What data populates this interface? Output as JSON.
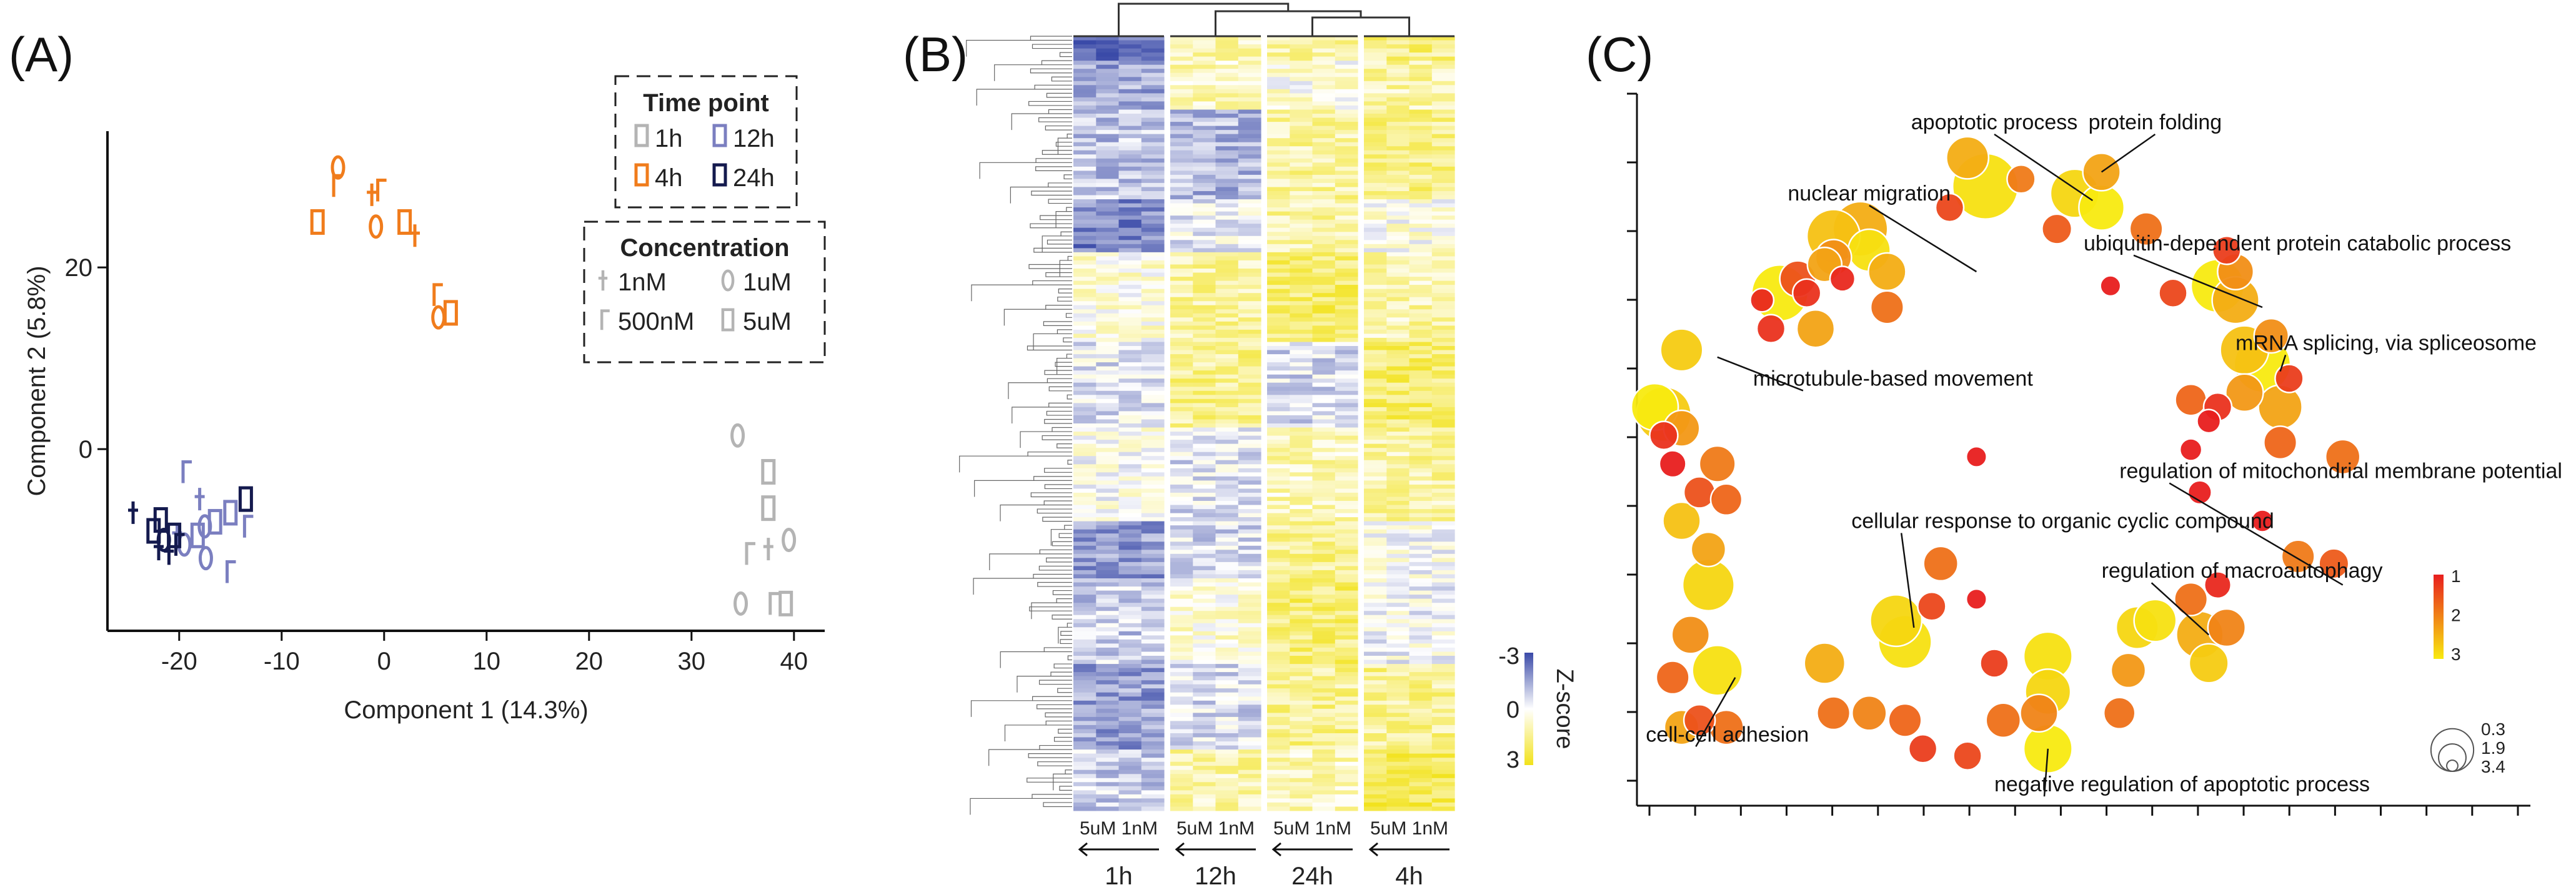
{
  "panels": {
    "a": "(A)",
    "b": "(B)",
    "c": "(C)"
  },
  "colors": {
    "t1h": "#b4b4b4",
    "t4h": "#f07c1c",
    "t12h": "#7b7fc0",
    "t24h": "#141a4e",
    "z_neg": "#3a4aa8",
    "z_mid": "#ffffff",
    "z_pos": "#f2e21a",
    "sig_low": "#e81e1e",
    "sig_high": "#f8ea10",
    "dendro": "#333333"
  },
  "chart_data": [
    {
      "type": "scatter",
      "title": "",
      "xlabel": "Component 1 (14.3%)",
      "ylabel": "Component 2 (5.8%)",
      "xlim": [
        -27,
        43
      ],
      "ylim": [
        -20,
        35
      ],
      "xticks": [
        -20,
        -10,
        0,
        10,
        20,
        30,
        40
      ],
      "xtick_labels": [
        "-20",
        "-10",
        "0",
        "10",
        "20",
        "30",
        "40"
      ],
      "yticks": [
        0,
        20
      ],
      "ytick_labels": [
        "0",
        "20"
      ],
      "legend": {
        "position": "top-right",
        "time_title": "Time point",
        "time_entries": [
          {
            "label": "1h",
            "key": "t1h"
          },
          {
            "label": "12h",
            "key": "t12h"
          },
          {
            "label": "4h",
            "key": "t4h"
          },
          {
            "label": "24h",
            "key": "t24h"
          }
        ],
        "conc_title": "Concentration",
        "conc_entries": [
          {
            "label": "1nM",
            "marker": "cross"
          },
          {
            "label": "1uM",
            "marker": "oval"
          },
          {
            "label": "500nM",
            "marker": "hook"
          },
          {
            "label": "5uM",
            "marker": "rect"
          }
        ]
      },
      "series": [
        {
          "name": "4h",
          "color_key": "t4h",
          "points": [
            {
              "x": -4.5,
              "y": 31,
              "m": "oval"
            },
            {
              "x": -4.8,
              "y": 29,
              "m": "hook"
            },
            {
              "x": -1.2,
              "y": 28,
              "m": "cross"
            },
            {
              "x": -0.5,
              "y": 28.5,
              "m": "hook"
            },
            {
              "x": -6.5,
              "y": 25,
              "m": "rect"
            },
            {
              "x": -0.8,
              "y": 24.5,
              "m": "oval"
            },
            {
              "x": 2,
              "y": 25,
              "m": "rect"
            },
            {
              "x": 3,
              "y": 23.5,
              "m": "cross"
            },
            {
              "x": 5,
              "y": 17,
              "m": "hook"
            },
            {
              "x": 6.5,
              "y": 15,
              "m": "rect"
            },
            {
              "x": 5.3,
              "y": 14.5,
              "m": "oval"
            }
          ]
        },
        {
          "name": "1h",
          "color_key": "t1h",
          "points": [
            {
              "x": 34.5,
              "y": 1.5,
              "m": "oval"
            },
            {
              "x": 37.5,
              "y": -2.5,
              "m": "rect"
            },
            {
              "x": 37.5,
              "y": -6.5,
              "m": "rect"
            },
            {
              "x": 39.5,
              "y": -10,
              "m": "oval"
            },
            {
              "x": 37.5,
              "y": -11,
              "m": "cross"
            },
            {
              "x": 35.5,
              "y": -11.5,
              "m": "hook"
            },
            {
              "x": 34.8,
              "y": -17,
              "m": "oval"
            },
            {
              "x": 37.8,
              "y": -17,
              "m": "hook"
            },
            {
              "x": 39.2,
              "y": -17,
              "m": "rect"
            }
          ]
        },
        {
          "name": "12h",
          "color_key": "t12h",
          "points": [
            {
              "x": -19.5,
              "y": -2.5,
              "m": "hook"
            },
            {
              "x": -18,
              "y": -5.5,
              "m": "cross"
            },
            {
              "x": -16.5,
              "y": -8,
              "m": "rect"
            },
            {
              "x": -17.5,
              "y": -8.5,
              "m": "oval"
            },
            {
              "x": -15,
              "y": -7,
              "m": "rect"
            },
            {
              "x": -13.5,
              "y": -8.5,
              "m": "hook"
            },
            {
              "x": -18.2,
              "y": -9.5,
              "m": "rect"
            },
            {
              "x": -17.4,
              "y": -12,
              "m": "oval"
            },
            {
              "x": -15.2,
              "y": -13.5,
              "m": "hook"
            },
            {
              "x": -19.5,
              "y": -10.5,
              "m": "oval"
            },
            {
              "x": -20.2,
              "y": -9.5,
              "m": "cross"
            }
          ]
        },
        {
          "name": "24h",
          "color_key": "t24h",
          "points": [
            {
              "x": -24.5,
              "y": -7,
              "m": "cross"
            },
            {
              "x": -22.5,
              "y": -9,
              "m": "rect"
            },
            {
              "x": -21.5,
              "y": -10,
              "m": "oval"
            },
            {
              "x": -20.5,
              "y": -9.5,
              "m": "rect"
            },
            {
              "x": -22,
              "y": -11,
              "m": "cross"
            },
            {
              "x": -21,
              "y": -11.5,
              "m": "cross"
            },
            {
              "x": -20.2,
              "y": -10.5,
              "m": "hook"
            },
            {
              "x": -13.5,
              "y": -5.5,
              "m": "rect"
            },
            {
              "x": -21.8,
              "y": -7.8,
              "m": "rect"
            }
          ]
        }
      ]
    },
    {
      "type": "heatmap",
      "title": "",
      "groups": [
        "1h",
        "12h",
        "24h",
        "4h"
      ],
      "group_col_labels": [
        [
          "5uM",
          "1nM"
        ],
        [
          "5uM",
          "1nM"
        ],
        [
          "5uM",
          "1nM"
        ],
        [
          "5uM",
          "1nM"
        ]
      ],
      "cols_per_group": 4,
      "n_rows": 190,
      "group_bias": [
        -0.3,
        0.1,
        0.35,
        0.15
      ],
      "colorbar": {
        "title": "Z-score",
        "ticks": [
          "-3",
          "0",
          "3"
        ]
      }
    },
    {
      "type": "scatter",
      "subtype": "bubble",
      "title": "",
      "xlim": [
        0,
        100
      ],
      "ylim": [
        0,
        100
      ],
      "n_xticks": 20,
      "n_yticks": 11,
      "bubbles": [
        {
          "x": 37,
          "y": 91,
          "s": 1.9,
          "v": 2.4
        },
        {
          "x": 39,
          "y": 87,
          "s": 3.4,
          "v": 2.9
        },
        {
          "x": 43,
          "y": 88,
          "s": 1.0,
          "v": 1.9
        },
        {
          "x": 35,
          "y": 84,
          "s": 1.0,
          "v": 1.4
        },
        {
          "x": 22,
          "y": 80,
          "s": 2.6,
          "v": 2.6
        },
        {
          "x": 25,
          "y": 81,
          "s": 2.7,
          "v": 2.4
        },
        {
          "x": 26,
          "y": 78,
          "s": 1.9,
          "v": 2.9
        },
        {
          "x": 21,
          "y": 76,
          "s": 1.4,
          "v": 2.3
        },
        {
          "x": 18,
          "y": 74,
          "s": 1.5,
          "v": 1.5
        },
        {
          "x": 16,
          "y": 72,
          "s": 2.8,
          "v": 3.0
        },
        {
          "x": 19,
          "y": 72,
          "s": 1.0,
          "v": 1.2
        },
        {
          "x": 23,
          "y": 74,
          "s": 0.8,
          "v": 1.1
        },
        {
          "x": 22,
          "y": 77,
          "s": 1.5,
          "v": 2.1
        },
        {
          "x": 14,
          "y": 71,
          "s": 0.7,
          "v": 1.1
        },
        {
          "x": 15,
          "y": 67,
          "s": 1.0,
          "v": 1.2
        },
        {
          "x": 28,
          "y": 75,
          "s": 1.6,
          "v": 2.4
        },
        {
          "x": 20,
          "y": 67,
          "s": 1.6,
          "v": 2.3
        },
        {
          "x": 28,
          "y": 70,
          "s": 1.3,
          "v": 1.8
        },
        {
          "x": 5,
          "y": 64,
          "s": 1.9,
          "v": 2.7
        },
        {
          "x": 2,
          "y": 56,
          "s": 2.2,
          "v": 3.0
        },
        {
          "x": 3,
          "y": 55,
          "s": 2.7,
          "v": 2.7
        },
        {
          "x": 5,
          "y": 53,
          "s": 1.5,
          "v": 2.2
        },
        {
          "x": 3,
          "y": 52,
          "s": 1.0,
          "v": 1.2
        },
        {
          "x": 4,
          "y": 48,
          "s": 0.9,
          "v": 1.0
        },
        {
          "x": 7,
          "y": 44,
          "s": 1.2,
          "v": 1.5
        },
        {
          "x": 9,
          "y": 48,
          "s": 1.5,
          "v": 1.9
        },
        {
          "x": 10,
          "y": 43,
          "s": 1.2,
          "v": 1.7
        },
        {
          "x": 5,
          "y": 40,
          "s": 1.6,
          "v": 2.6
        },
        {
          "x": 8,
          "y": 36,
          "s": 1.4,
          "v": 2.3
        },
        {
          "x": 8,
          "y": 31,
          "s": 2.5,
          "v": 2.8
        },
        {
          "x": 6,
          "y": 24,
          "s": 1.6,
          "v": 2.1
        },
        {
          "x": 4,
          "y": 18,
          "s": 1.3,
          "v": 1.7
        },
        {
          "x": 9,
          "y": 19,
          "s": 2.4,
          "v": 2.9
        },
        {
          "x": 5,
          "y": 11,
          "s": 1.4,
          "v": 2.3
        },
        {
          "x": 7,
          "y": 12,
          "s": 1.2,
          "v": 1.5
        },
        {
          "x": 10,
          "y": 11,
          "s": 1.4,
          "v": 1.8
        },
        {
          "x": 21,
          "y": 20,
          "s": 1.8,
          "v": 2.4
        },
        {
          "x": 22,
          "y": 13,
          "s": 1.3,
          "v": 1.8
        },
        {
          "x": 26,
          "y": 13,
          "s": 1.4,
          "v": 2.0
        },
        {
          "x": 30,
          "y": 12,
          "s": 1.3,
          "v": 1.7
        },
        {
          "x": 29,
          "y": 26,
          "s": 2.5,
          "v": 2.8
        },
        {
          "x": 30,
          "y": 23,
          "s": 2.6,
          "v": 2.9
        },
        {
          "x": 34,
          "y": 34,
          "s": 1.4,
          "v": 1.8
        },
        {
          "x": 33,
          "y": 28,
          "s": 1.0,
          "v": 1.4
        },
        {
          "x": 32,
          "y": 8,
          "s": 1.0,
          "v": 1.3
        },
        {
          "x": 37,
          "y": 7,
          "s": 1.0,
          "v": 1.4
        },
        {
          "x": 41,
          "y": 12,
          "s": 1.4,
          "v": 1.8
        },
        {
          "x": 45,
          "y": 13,
          "s": 1.6,
          "v": 2.0
        },
        {
          "x": 46,
          "y": 16,
          "s": 2.1,
          "v": 2.8
        },
        {
          "x": 46,
          "y": 21,
          "s": 2.3,
          "v": 2.9
        },
        {
          "x": 46,
          "y": 8,
          "s": 2.3,
          "v": 3.0
        },
        {
          "x": 40,
          "y": 20,
          "s": 1.0,
          "v": 1.3
        },
        {
          "x": 38,
          "y": 29,
          "s": 0.5,
          "v": 1.0
        },
        {
          "x": 38,
          "y": 49,
          "s": 0.5,
          "v": 1.0
        },
        {
          "x": 56,
          "y": 25,
          "s": 1.9,
          "v": 2.8
        },
        {
          "x": 55,
          "y": 19,
          "s": 1.4,
          "v": 2.2
        },
        {
          "x": 54,
          "y": 13,
          "s": 1.2,
          "v": 1.8
        },
        {
          "x": 63,
          "y": 24,
          "s": 2.2,
          "v": 2.4
        },
        {
          "x": 64,
          "y": 20,
          "s": 1.7,
          "v": 2.7
        },
        {
          "x": 58,
          "y": 26,
          "s": 1.9,
          "v": 2.9
        },
        {
          "x": 62,
          "y": 29,
          "s": 1.3,
          "v": 1.8
        },
        {
          "x": 66,
          "y": 25,
          "s": 1.6,
          "v": 2.0
        },
        {
          "x": 65,
          "y": 31,
          "s": 0.9,
          "v": 1.1
        },
        {
          "x": 74,
          "y": 35,
          "s": 1.3,
          "v": 1.9
        },
        {
          "x": 63,
          "y": 44,
          "s": 0.7,
          "v": 1.0
        },
        {
          "x": 70,
          "y": 40,
          "s": 0.6,
          "v": 1.0
        },
        {
          "x": 65,
          "y": 73,
          "s": 2.6,
          "v": 3.0
        },
        {
          "x": 67,
          "y": 71,
          "s": 2.2,
          "v": 2.4
        },
        {
          "x": 67,
          "y": 75,
          "s": 1.5,
          "v": 2.1
        },
        {
          "x": 66,
          "y": 78,
          "s": 1.0,
          "v": 1.3
        },
        {
          "x": 68,
          "y": 64,
          "s": 2.3,
          "v": 2.6
        },
        {
          "x": 70,
          "y": 62,
          "s": 2.8,
          "v": 3.0
        },
        {
          "x": 71,
          "y": 66,
          "s": 1.4,
          "v": 2.1
        },
        {
          "x": 68,
          "y": 58,
          "s": 1.6,
          "v": 2.2
        },
        {
          "x": 72,
          "y": 56,
          "s": 2.0,
          "v": 2.3
        },
        {
          "x": 73,
          "y": 60,
          "s": 1.0,
          "v": 1.3
        },
        {
          "x": 62,
          "y": 57,
          "s": 1.2,
          "v": 1.7
        },
        {
          "x": 65,
          "y": 56,
          "s": 1.0,
          "v": 1.2
        },
        {
          "x": 64,
          "y": 54,
          "s": 0.7,
          "v": 1.0
        },
        {
          "x": 72,
          "y": 51,
          "s": 1.3,
          "v": 1.7
        },
        {
          "x": 79,
          "y": 49,
          "s": 1.4,
          "v": 1.8
        },
        {
          "x": 78,
          "y": 34,
          "s": 1.1,
          "v": 1.6
        },
        {
          "x": 52,
          "y": 89,
          "s": 1.6,
          "v": 2.3
        },
        {
          "x": 49,
          "y": 86,
          "s": 2.3,
          "v": 2.8
        },
        {
          "x": 52,
          "y": 84,
          "s": 2.1,
          "v": 3.0
        },
        {
          "x": 57,
          "y": 81,
          "s": 1.3,
          "v": 1.8
        },
        {
          "x": 47,
          "y": 81,
          "s": 1.1,
          "v": 1.6
        },
        {
          "x": 53,
          "y": 73,
          "s": 0.5,
          "v": 1.0
        },
        {
          "x": 60,
          "y": 72,
          "s": 1.0,
          "v": 1.4
        },
        {
          "x": 62,
          "y": 50,
          "s": 0.6,
          "v": 1.0
        }
      ],
      "annotations": [
        {
          "label": "apoptotic process",
          "lx": 40,
          "ly": 95,
          "ax": 51,
          "ay": 85,
          "anchor": "middle"
        },
        {
          "label": "protein folding",
          "lx": 58,
          "ly": 95,
          "ax": 52,
          "ay": 89,
          "anchor": "middle"
        },
        {
          "label": "nuclear migration",
          "lx": 26,
          "ly": 85,
          "ax": 38,
          "ay": 75,
          "anchor": "middle"
        },
        {
          "label": "ubiquitin-dependent protein catabolic process",
          "lx": 50,
          "ly": 78,
          "ax": 70,
          "ay": 70,
          "anchor": "start"
        },
        {
          "label": "mRNA splicing, via spliceosome",
          "lx": 67,
          "ly": 64,
          "ax": 72,
          "ay": 61,
          "anchor": "start"
        },
        {
          "label": "microtubule-based movement",
          "lx": 13,
          "ly": 59,
          "ax": 9,
          "ay": 63,
          "anchor": "start"
        },
        {
          "label": "regulation of mitochondrial membrane potential",
          "lx": 54,
          "ly": 46,
          "ax": 79,
          "ay": 31,
          "anchor": "start"
        },
        {
          "label": "cellular response to organic cyclic compound",
          "lx": 24,
          "ly": 39,
          "ax": 31,
          "ay": 25,
          "anchor": "start"
        },
        {
          "label": "regulation of macroautophagy",
          "lx": 52,
          "ly": 32,
          "ax": 64,
          "ay": 24,
          "anchor": "start"
        },
        {
          "label": "cell-cell adhesion",
          "lx": 1,
          "ly": 9,
          "ax": 11,
          "ay": 18,
          "anchor": "start"
        },
        {
          "label": "negative regulation of apoptotic process",
          "lx": 40,
          "ly": 2,
          "ax": 46,
          "ay": 8,
          "anchor": "start"
        }
      ],
      "colorbar_ticks": [
        "1",
        "2",
        "3"
      ],
      "size_legend": [
        "0.3",
        "1.9",
        "3.4"
      ]
    }
  ]
}
